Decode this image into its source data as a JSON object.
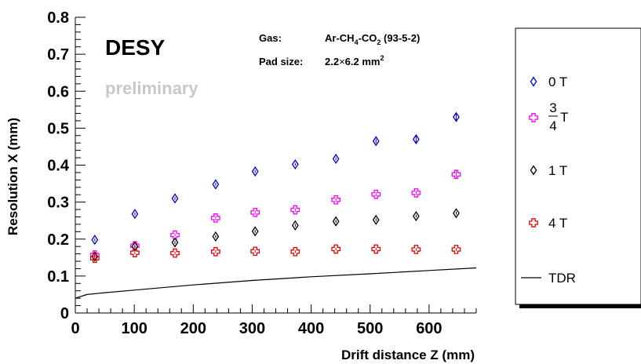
{
  "chart_data": {
    "type": "scatter",
    "title": "",
    "xlabel": "Drift distance Z (mm)",
    "ylabel": "Resolution X (mm)",
    "xlim": [
      0,
      680
    ],
    "ylim": [
      0,
      0.8
    ],
    "x_ticks": [
      "0",
      "100",
      "200",
      "300",
      "400",
      "500",
      "600"
    ],
    "y_ticks": [
      "0",
      "0.1",
      "0.2",
      "0.3",
      "0.4",
      "0.5",
      "0.6",
      "0.7",
      "0.8"
    ],
    "x_tick_values": [
      0,
      100,
      200,
      300,
      400,
      500,
      600
    ],
    "y_tick_values": [
      0,
      0.1,
      0.2,
      0.3,
      0.4,
      0.5,
      0.6,
      0.7,
      0.8
    ],
    "x": [
      33,
      101,
      169,
      238,
      305,
      373,
      442,
      510,
      578,
      646
    ],
    "series": [
      {
        "name": "0 T",
        "marker": "diamond",
        "color": "#0000cc",
        "values": [
          0.198,
          0.268,
          0.31,
          0.348,
          0.383,
          0.402,
          0.417,
          0.465,
          0.47,
          0.53
        ],
        "errors": [
          0.004,
          0.004,
          0.004,
          0.004,
          0.004,
          0.004,
          0.004,
          0.006,
          0.01,
          0.012
        ]
      },
      {
        "name": "3/4 T",
        "marker": "cross",
        "color": "#ff00ff",
        "values": [
          0.157,
          0.182,
          0.211,
          0.257,
          0.272,
          0.279,
          0.306,
          0.321,
          0.325,
          0.375
        ],
        "errors": [
          0.004,
          0.004,
          0.004,
          0.006,
          0.006,
          0.006,
          0.006,
          0.006,
          0.006,
          0.01
        ]
      },
      {
        "name": "1 T",
        "marker": "diamond",
        "color": "#000000",
        "values": [
          0.153,
          0.18,
          0.191,
          0.207,
          0.221,
          0.237,
          0.248,
          0.252,
          0.262,
          0.27
        ],
        "errors": [
          0.004,
          0.004,
          0.004,
          0.004,
          0.004,
          0.004,
          0.004,
          0.004,
          0.004,
          0.004
        ]
      },
      {
        "name": "4 T",
        "marker": "cross",
        "color": "#dd0000",
        "values": [
          0.148,
          0.163,
          0.162,
          0.166,
          0.167,
          0.166,
          0.173,
          0.173,
          0.172,
          0.172
        ],
        "errors": [
          0.006,
          0.004,
          0.004,
          0.004,
          0.004,
          0.004,
          0.004,
          0.004,
          0.004,
          0.004
        ]
      }
    ],
    "curve": {
      "name": "TDR",
      "color": "#000000",
      "model": "sqrt",
      "x": [
        0,
        20,
        50,
        100,
        200,
        300,
        400,
        500,
        600,
        680
      ],
      "values": [
        0.04,
        0.05,
        0.055,
        0.062,
        0.076,
        0.088,
        0.098,
        0.106,
        0.115,
        0.122
      ]
    },
    "annotations": {
      "label": "DESY",
      "status": "preliminary",
      "gas_label": "Gas:",
      "gas_formula": {
        "p1": "Ar-CH",
        "s1": "4",
        "p2": "-CO",
        "s2": "2",
        "p3": " (93-5-2)"
      },
      "pad_label": "Pad size:",
      "pad_value": {
        "p1": "2.2",
        "times": "×",
        "p2": "6.2 mm",
        "sup": "2"
      }
    },
    "legend": {
      "position": "right",
      "entries": [
        {
          "label": "0 T",
          "marker": "diamond",
          "color": "#0000cc"
        },
        {
          "label_num": "3",
          "label_den": "4",
          "label_unit": "T",
          "marker": "cross",
          "color": "#ff00ff"
        },
        {
          "label": "1 T",
          "marker": "diamond",
          "color": "#000000"
        },
        {
          "label": "4 T",
          "marker": "cross",
          "color": "#dd0000"
        },
        {
          "label": "TDR",
          "marker": "line",
          "color": "#000000"
        }
      ]
    },
    "grid": false
  }
}
